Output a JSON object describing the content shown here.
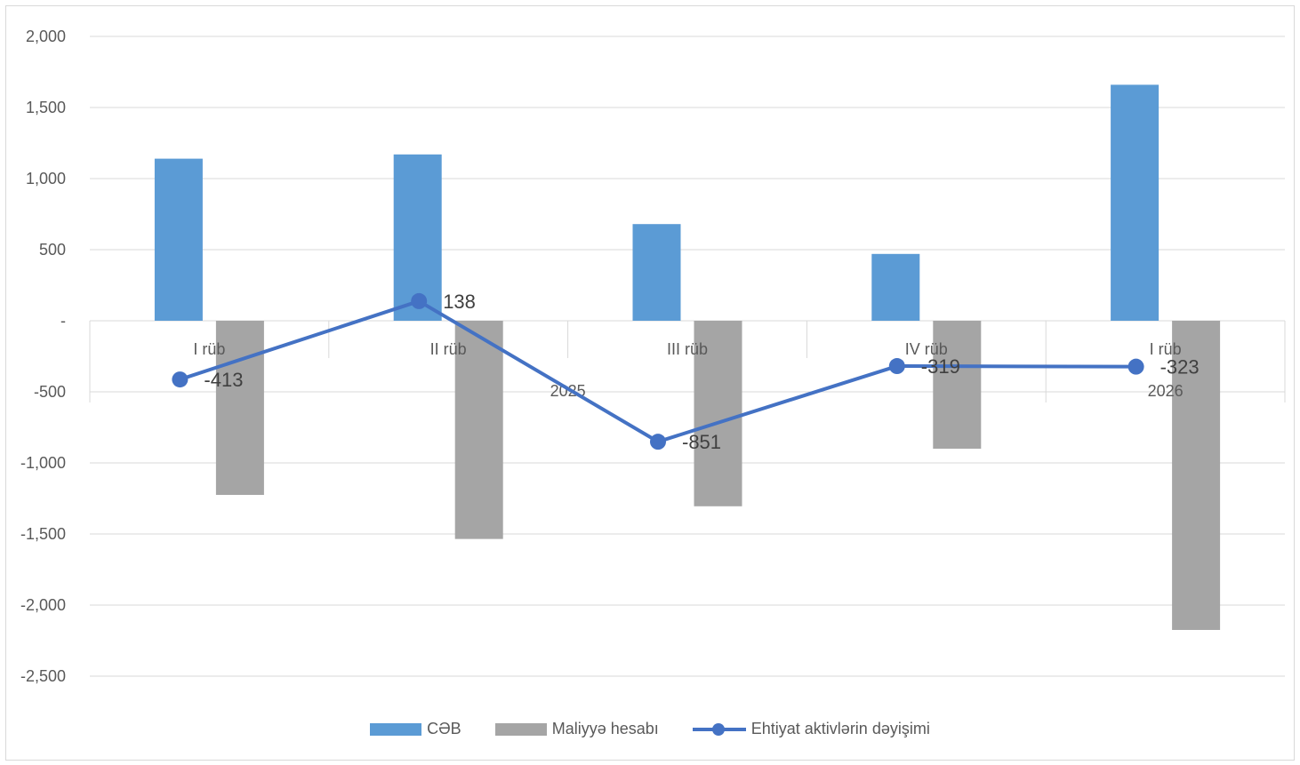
{
  "chart_data": {
    "type": "bar",
    "categories": [
      "I rüb",
      "II rüb",
      "III rüb",
      "IV rüb",
      "I rüb"
    ],
    "groups": [
      {
        "label": "2025",
        "span": [
          0,
          3
        ]
      },
      {
        "label": "2026",
        "span": [
          4,
          4
        ]
      }
    ],
    "ylim": [
      -2500,
      2000
    ],
    "yticks": [
      2000,
      1500,
      1000,
      500,
      0,
      -500,
      -1000,
      -1500,
      -2000,
      -2500
    ],
    "ytick_labels": [
      "2,000",
      "1,500",
      "1,000",
      "500",
      "-",
      "-500",
      "-1,000",
      "-1,500",
      "-2,000",
      "-2,500"
    ],
    "grid": true,
    "legend_position": "bottom",
    "series": [
      {
        "name": "CƏB",
        "type": "bar",
        "color": "#5b9bd5",
        "values": [
          1140,
          1170,
          680,
          470,
          1660
        ]
      },
      {
        "name": "Maliyyə hesabı",
        "type": "bar",
        "color": "#a5a5a5",
        "values": [
          -1225,
          -1535,
          -1305,
          -900,
          -2175
        ]
      },
      {
        "name": "Ehtiyat aktivlərin dəyişimi",
        "type": "line",
        "color": "#4472c4",
        "values": [
          -413,
          138,
          -851,
          -319,
          -323
        ],
        "data_labels": [
          "-413",
          "138",
          "-851",
          "-319",
          "-323"
        ]
      }
    ]
  }
}
